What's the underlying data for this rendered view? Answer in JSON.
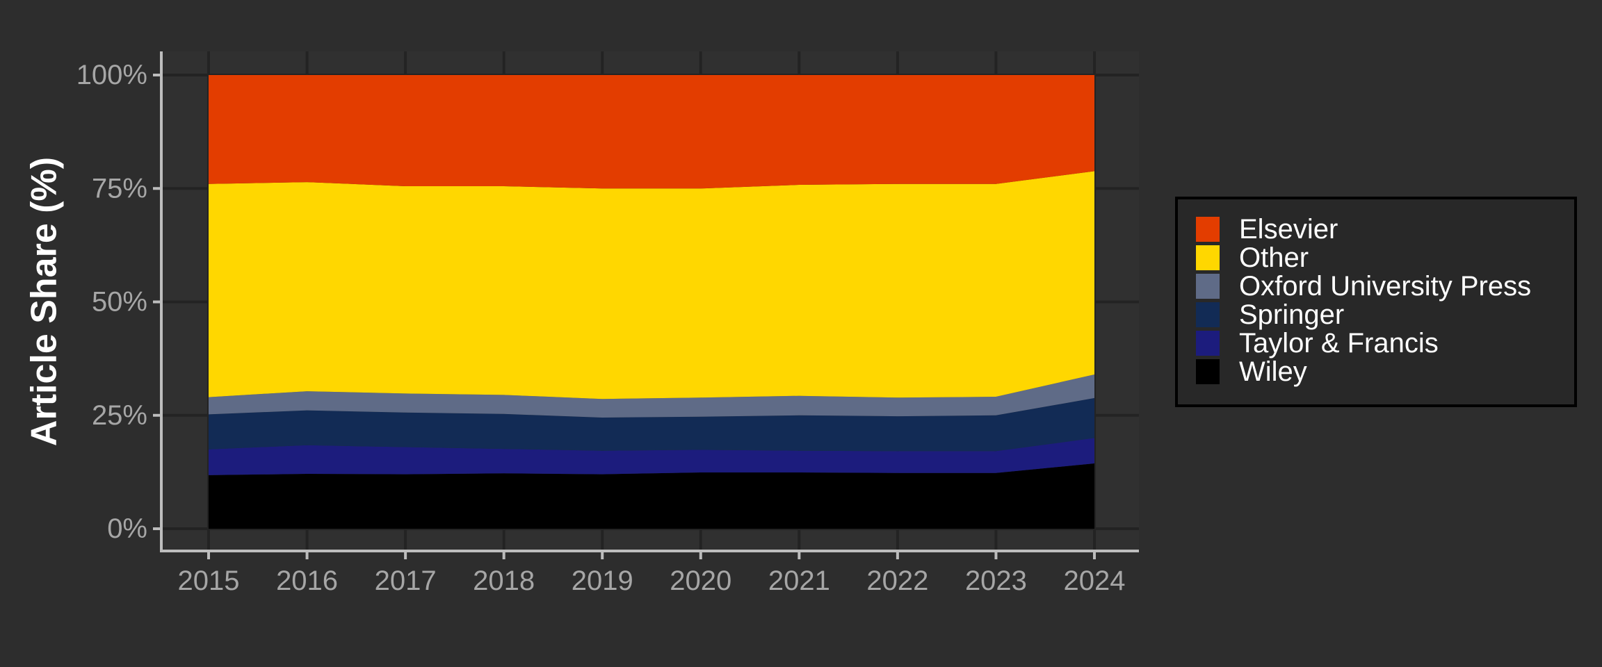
{
  "chart_data": {
    "type": "area",
    "stacked": true,
    "percent": true,
    "title": "",
    "xlabel": "",
    "ylabel": "Article Share (%)",
    "x": [
      2015,
      2016,
      2017,
      2018,
      2019,
      2020,
      2021,
      2022,
      2023,
      2024
    ],
    "ylim": [
      0,
      100
    ],
    "yticks": [
      0,
      25,
      50,
      75,
      100
    ],
    "ytick_labels": [
      "0%",
      "25%",
      "50%",
      "75%",
      "100%"
    ],
    "grid": true,
    "legend_position": "right",
    "colors": {
      "background": "#2d2d2d",
      "panel": "#303030",
      "grid": "#232323",
      "axis": "#bdbdbd",
      "tick_text": "#a6a6a6",
      "legend_bg": "#282828",
      "legend_border": "#000000"
    },
    "series": [
      {
        "name": "Wiley",
        "color": "#000000",
        "values": [
          11.8,
          12.1,
          12.0,
          12.2,
          12.0,
          12.4,
          12.4,
          12.3,
          12.3,
          14.4
        ]
      },
      {
        "name": "Taylor & Francis",
        "color": "#1c1c7d",
        "values": [
          5.7,
          6.3,
          6.0,
          5.4,
          5.2,
          5.0,
          4.8,
          4.8,
          4.8,
          5.6
        ]
      },
      {
        "name": "Springer",
        "color": "#122b55",
        "values": [
          7.7,
          7.7,
          7.6,
          7.7,
          7.3,
          7.3,
          7.8,
          7.7,
          7.9,
          8.8
        ]
      },
      {
        "name": "Oxford University Press",
        "color": "#5f6b87",
        "values": [
          3.8,
          4.2,
          4.2,
          4.2,
          4.1,
          4.2,
          4.3,
          4.1,
          4.1,
          5.2
        ]
      },
      {
        "name": "Other",
        "color": "#ffd700",
        "values": [
          47.0,
          46.1,
          45.7,
          46.0,
          46.4,
          46.1,
          46.5,
          47.1,
          46.9,
          44.8
        ]
      },
      {
        "name": "Elsevier",
        "color": "#e33d00",
        "values": [
          24.0,
          23.6,
          24.5,
          24.5,
          25.0,
          25.0,
          24.2,
          24.0,
          24.0,
          21.2
        ]
      }
    ],
    "legend_order": [
      "Elsevier",
      "Other",
      "Oxford University Press",
      "Springer",
      "Taylor & Francis",
      "Wiley"
    ]
  }
}
